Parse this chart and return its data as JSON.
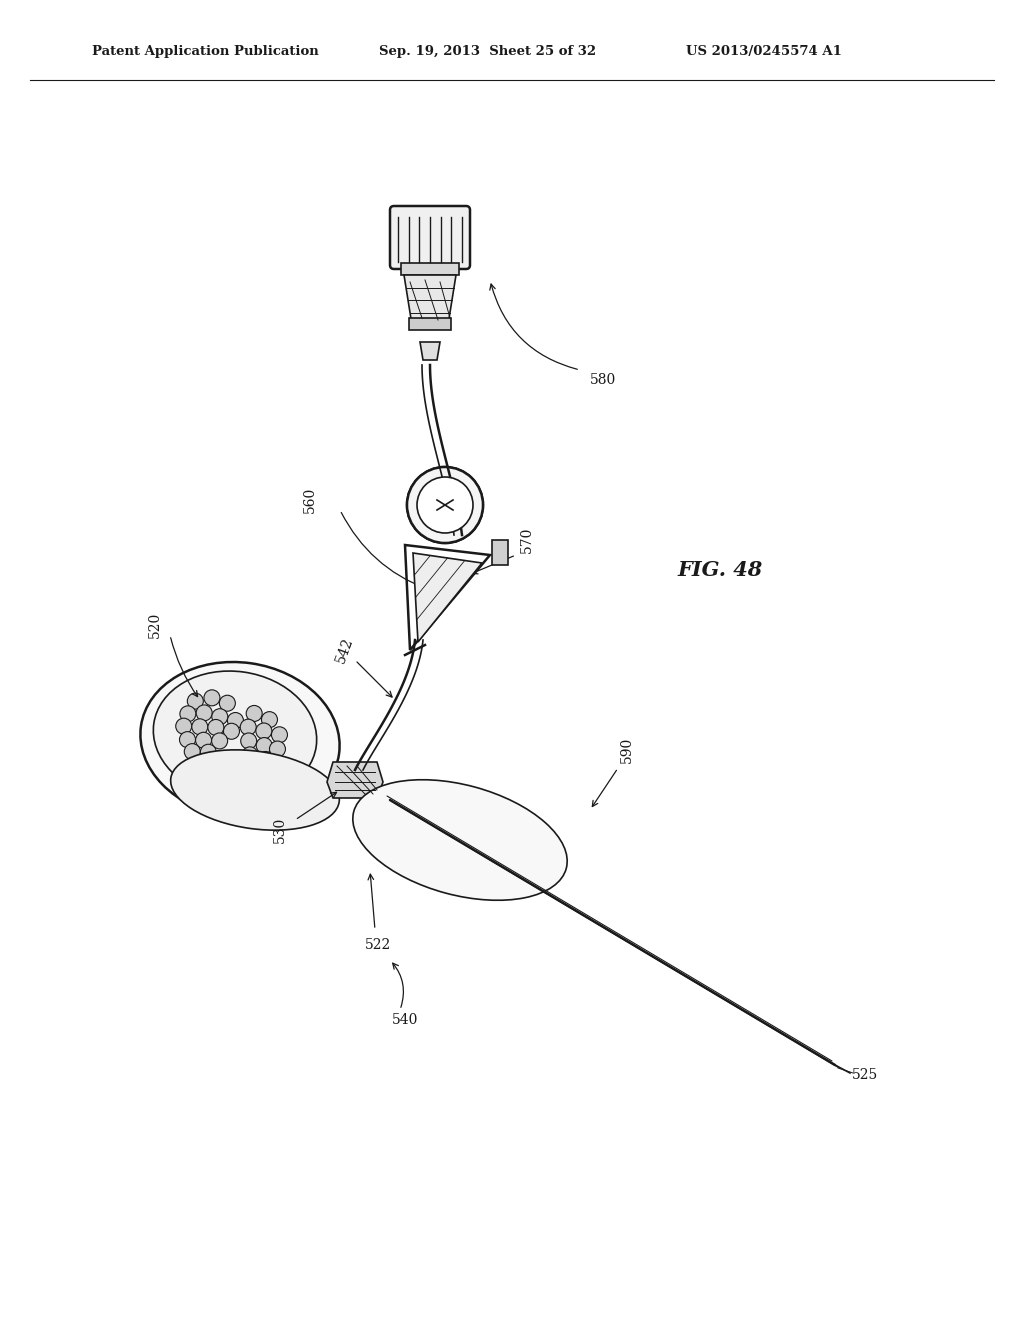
{
  "header_left": "Patent Application Publication",
  "header_center": "Sep. 19, 2013  Sheet 25 of 32",
  "header_right": "US 2013/0245574 A1",
  "fig_label": "FIG. 48",
  "background_color": "#ffffff",
  "line_color": "#1a1a1a",
  "text_color": "#1a1a1a",
  "gray_light": "#e0e0e0",
  "gray_mid": "#b0b0b0",
  "gray_dark": "#888888"
}
